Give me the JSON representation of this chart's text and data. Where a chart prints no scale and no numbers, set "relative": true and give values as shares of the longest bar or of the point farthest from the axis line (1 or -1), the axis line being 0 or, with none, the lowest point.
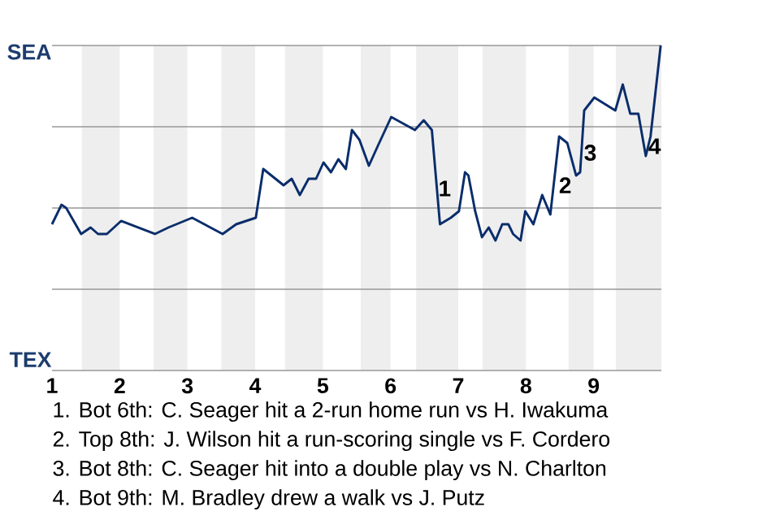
{
  "chart_data": {
    "type": "line",
    "relative": true,
    "x": [
      1,
      1.14,
      1.21,
      1.43,
      1.57,
      1.68,
      1.81,
      2.02,
      2.52,
      2.72,
      3.07,
      3.52,
      3.72,
      4.01,
      4.12,
      4.42,
      4.54,
      4.66,
      4.79,
      4.9,
      5.01,
      5.12,
      5.23,
      5.34,
      5.43,
      5.54,
      5.68,
      5.81,
      6.01,
      6.36,
      6.49,
      6.61,
      6.73,
      6.89,
      7.01,
      7.1,
      7.15,
      7.25,
      7.35,
      7.45,
      7.55,
      7.65,
      7.74,
      7.81,
      7.92,
      7.99,
      8.11,
      8.24,
      8.36,
      8.49,
      8.61,
      8.74,
      8.8,
      8.86,
      9.01,
      9.32,
      9.43,
      9.54,
      9.66,
      9.77,
      9.84,
      9.99
    ],
    "series": [
      {
        "color": "#0a2d6b",
        "values": [
          0.45,
          0.51,
          0.5,
          0.42,
          0.44,
          0.42,
          0.42,
          0.46,
          0.42,
          0.44,
          0.47,
          0.42,
          0.45,
          0.47,
          0.62,
          0.57,
          0.59,
          0.54,
          0.59,
          0.59,
          0.64,
          0.61,
          0.65,
          0.62,
          0.74,
          0.71,
          0.63,
          0.69,
          0.78,
          0.74,
          0.77,
          0.74,
          0.45,
          0.47,
          0.49,
          0.61,
          0.6,
          0.49,
          0.41,
          0.44,
          0.4,
          0.45,
          0.45,
          0.42,
          0.4,
          0.49,
          0.45,
          0.54,
          0.48,
          0.72,
          0.7,
          0.6,
          0.61,
          0.8,
          0.84,
          0.8,
          0.88,
          0.79,
          0.79,
          0.66,
          0.72,
          1
        ]
      }
    ],
    "xlim": [
      1,
      10
    ],
    "xticks": [
      1,
      2,
      3,
      4,
      5,
      6,
      7,
      8,
      9
    ],
    "ref_lines": [
      {
        "axis": "y",
        "value": 0.25,
        "color": "#999999"
      },
      {
        "axis": "y",
        "value": 0.5,
        "color": "#999999"
      },
      {
        "axis": "y",
        "value": 0.75,
        "color": "#999999"
      }
    ],
    "bands": [
      {
        "axis": "x",
        "from": 1.44,
        "to": 2,
        "color": "#eeeeee"
      },
      {
        "axis": "x",
        "from": 2.5,
        "to": 3,
        "color": "#eeeeee"
      },
      {
        "axis": "x",
        "from": 3.5,
        "to": 4,
        "color": "#eeeeee"
      },
      {
        "axis": "x",
        "from": 4.44,
        "to": 5,
        "color": "#eeeeee"
      },
      {
        "axis": "x",
        "from": 5.56,
        "to": 6,
        "color": "#eeeeee"
      },
      {
        "axis": "x",
        "from": 6.38,
        "to": 7,
        "color": "#eeeeee"
      },
      {
        "axis": "x",
        "from": 7.36,
        "to": 8,
        "color": "#eeeeee"
      },
      {
        "axis": "x",
        "from": 8.63,
        "to": 9,
        "color": "#eeeeee"
      },
      {
        "axis": "x",
        "from": 9.33,
        "to": 10,
        "color": "#eeeeee"
      }
    ],
    "annotations": [
      "SEA",
      "TEX",
      {
        "text": "1",
        "x": 6.8,
        "y": 0.56
      },
      {
        "text": "2",
        "x": 8.58,
        "y": 0.57
      },
      {
        "text": "3",
        "x": 8.95,
        "y": 0.67
      },
      {
        "text": "4",
        "x": 9.9,
        "y": 0.69
      },
      "1. Bot 6th: C. Seager hit a 2-run home run vs H. Iwakuma",
      "2. Top 8th: J. Wilson hit a run-scoring single vs F. Cordero",
      "3. Bot 8th: C. Seager hit into a double play vs N. Charlton",
      "4. Bot 9th: M. Bradley drew a walk vs J. Putz"
    ]
  }
}
